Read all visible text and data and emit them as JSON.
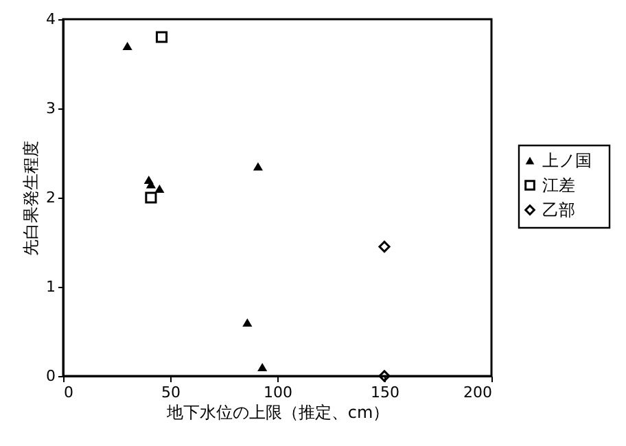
{
  "chart_data": {
    "type": "scatter",
    "xlabel": "地下水位の上限（推定、cm）",
    "ylabel": "先白果発生程度",
    "xlim": [
      0,
      200
    ],
    "xticks": [
      0,
      50,
      100,
      150,
      200
    ],
    "ylim": [
      0,
      4
    ],
    "yticks": [
      0,
      1,
      2,
      3,
      4
    ],
    "grid": false,
    "legend": "right",
    "series": [
      {
        "name": "上ノ国",
        "color": "#000000",
        "marker": "triangle",
        "x": [
          30,
          40,
          41,
          45,
          91,
          86,
          93
        ],
        "values": [
          3.7,
          2.2,
          2.15,
          2.1,
          2.35,
          0.6,
          0.1
        ]
      },
      {
        "name": "江差",
        "color": "#000000",
        "marker": "square",
        "x": [
          46,
          41
        ],
        "values": [
          3.8,
          2.0
        ]
      },
      {
        "name": "乙部",
        "color": "#000000",
        "marker": "diamond",
        "x": [
          150,
          150
        ],
        "values": [
          1.45,
          0
        ]
      }
    ]
  }
}
